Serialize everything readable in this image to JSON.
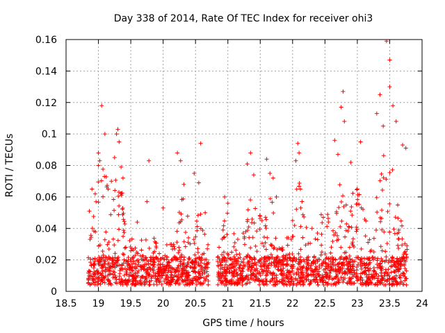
{
  "chart_data": {
    "type": "scatter",
    "title": "Day 338 of 2014, Rate Of TEC Index for receiver ohi3",
    "xlabel": "GPS time / hours",
    "ylabel": "ROTI / TECUs",
    "xlim": [
      18.5,
      24
    ],
    "ylim": [
      0,
      0.16
    ],
    "xticks": [
      "18.5",
      "19",
      "19.5",
      "20",
      "20.5",
      "21",
      "21.5",
      "22",
      "22.5",
      "23",
      "23.5",
      "24"
    ],
    "yticks": [
      "0",
      "0.02",
      "0.04",
      "0.06",
      "0.08",
      "0.1",
      "0.12",
      "0.14",
      "0.16"
    ],
    "grid": true,
    "marker": "+",
    "color": "#ff0000",
    "series": [
      {
        "name": "ROTI",
        "segments": [
          [
            18.84,
            20.7
          ],
          [
            20.84,
            23.77
          ]
        ],
        "baseline_band": [
          0.004,
          0.022
        ],
        "notable_points": [
          {
            "x": 18.86,
            "y": 0.051
          },
          {
            "x": 18.9,
            "y": 0.065
          },
          {
            "x": 18.95,
            "y": 0.062
          },
          {
            "x": 19.0,
            "y": 0.08
          },
          {
            "x": 19.0,
            "y": 0.088
          },
          {
            "x": 19.02,
            "y": 0.083
          },
          {
            "x": 19.05,
            "y": 0.118
          },
          {
            "x": 19.1,
            "y": 0.1
          },
          {
            "x": 19.15,
            "y": 0.065
          },
          {
            "x": 19.2,
            "y": 0.07
          },
          {
            "x": 19.25,
            "y": 0.085
          },
          {
            "x": 19.28,
            "y": 0.1
          },
          {
            "x": 19.3,
            "y": 0.103
          },
          {
            "x": 19.32,
            "y": 0.095
          },
          {
            "x": 19.35,
            "y": 0.079
          },
          {
            "x": 19.38,
            "y": 0.072
          },
          {
            "x": 19.6,
            "y": 0.044
          },
          {
            "x": 19.78,
            "y": 0.083
          },
          {
            "x": 19.75,
            "y": 0.057
          },
          {
            "x": 20.0,
            "y": 0.053
          },
          {
            "x": 20.22,
            "y": 0.088
          },
          {
            "x": 20.27,
            "y": 0.083
          },
          {
            "x": 20.32,
            "y": 0.068
          },
          {
            "x": 20.48,
            "y": 0.075
          },
          {
            "x": 20.55,
            "y": 0.069
          },
          {
            "x": 20.58,
            "y": 0.094
          },
          {
            "x": 20.65,
            "y": 0.05
          },
          {
            "x": 20.95,
            "y": 0.06
          },
          {
            "x": 21.0,
            "y": 0.056
          },
          {
            "x": 21.35,
            "y": 0.088
          },
          {
            "x": 21.3,
            "y": 0.081
          },
          {
            "x": 21.4,
            "y": 0.074
          },
          {
            "x": 21.6,
            "y": 0.084
          },
          {
            "x": 21.65,
            "y": 0.075
          },
          {
            "x": 21.7,
            "y": 0.072
          },
          {
            "x": 21.75,
            "y": 0.06
          },
          {
            "x": 22.0,
            "y": 0.045
          },
          {
            "x": 22.05,
            "y": 0.083
          },
          {
            "x": 22.08,
            "y": 0.094
          },
          {
            "x": 22.1,
            "y": 0.088
          },
          {
            "x": 22.12,
            "y": 0.065
          },
          {
            "x": 22.3,
            "y": 0.04
          },
          {
            "x": 22.65,
            "y": 0.096
          },
          {
            "x": 22.7,
            "y": 0.087
          },
          {
            "x": 22.75,
            "y": 0.117
          },
          {
            "x": 22.78,
            "y": 0.127
          },
          {
            "x": 22.8,
            "y": 0.108
          },
          {
            "x": 22.9,
            "y": 0.082
          },
          {
            "x": 23.0,
            "y": 0.065
          },
          {
            "x": 23.05,
            "y": 0.095
          },
          {
            "x": 23.3,
            "y": 0.113
          },
          {
            "x": 23.35,
            "y": 0.125
          },
          {
            "x": 23.4,
            "y": 0.105
          },
          {
            "x": 23.45,
            "y": 0.159
          },
          {
            "x": 23.5,
            "y": 0.147
          },
          {
            "x": 23.5,
            "y": 0.13
          },
          {
            "x": 23.55,
            "y": 0.118
          },
          {
            "x": 23.6,
            "y": 0.108
          },
          {
            "x": 23.7,
            "y": 0.093
          },
          {
            "x": 23.75,
            "y": 0.091
          }
        ]
      }
    ]
  }
}
